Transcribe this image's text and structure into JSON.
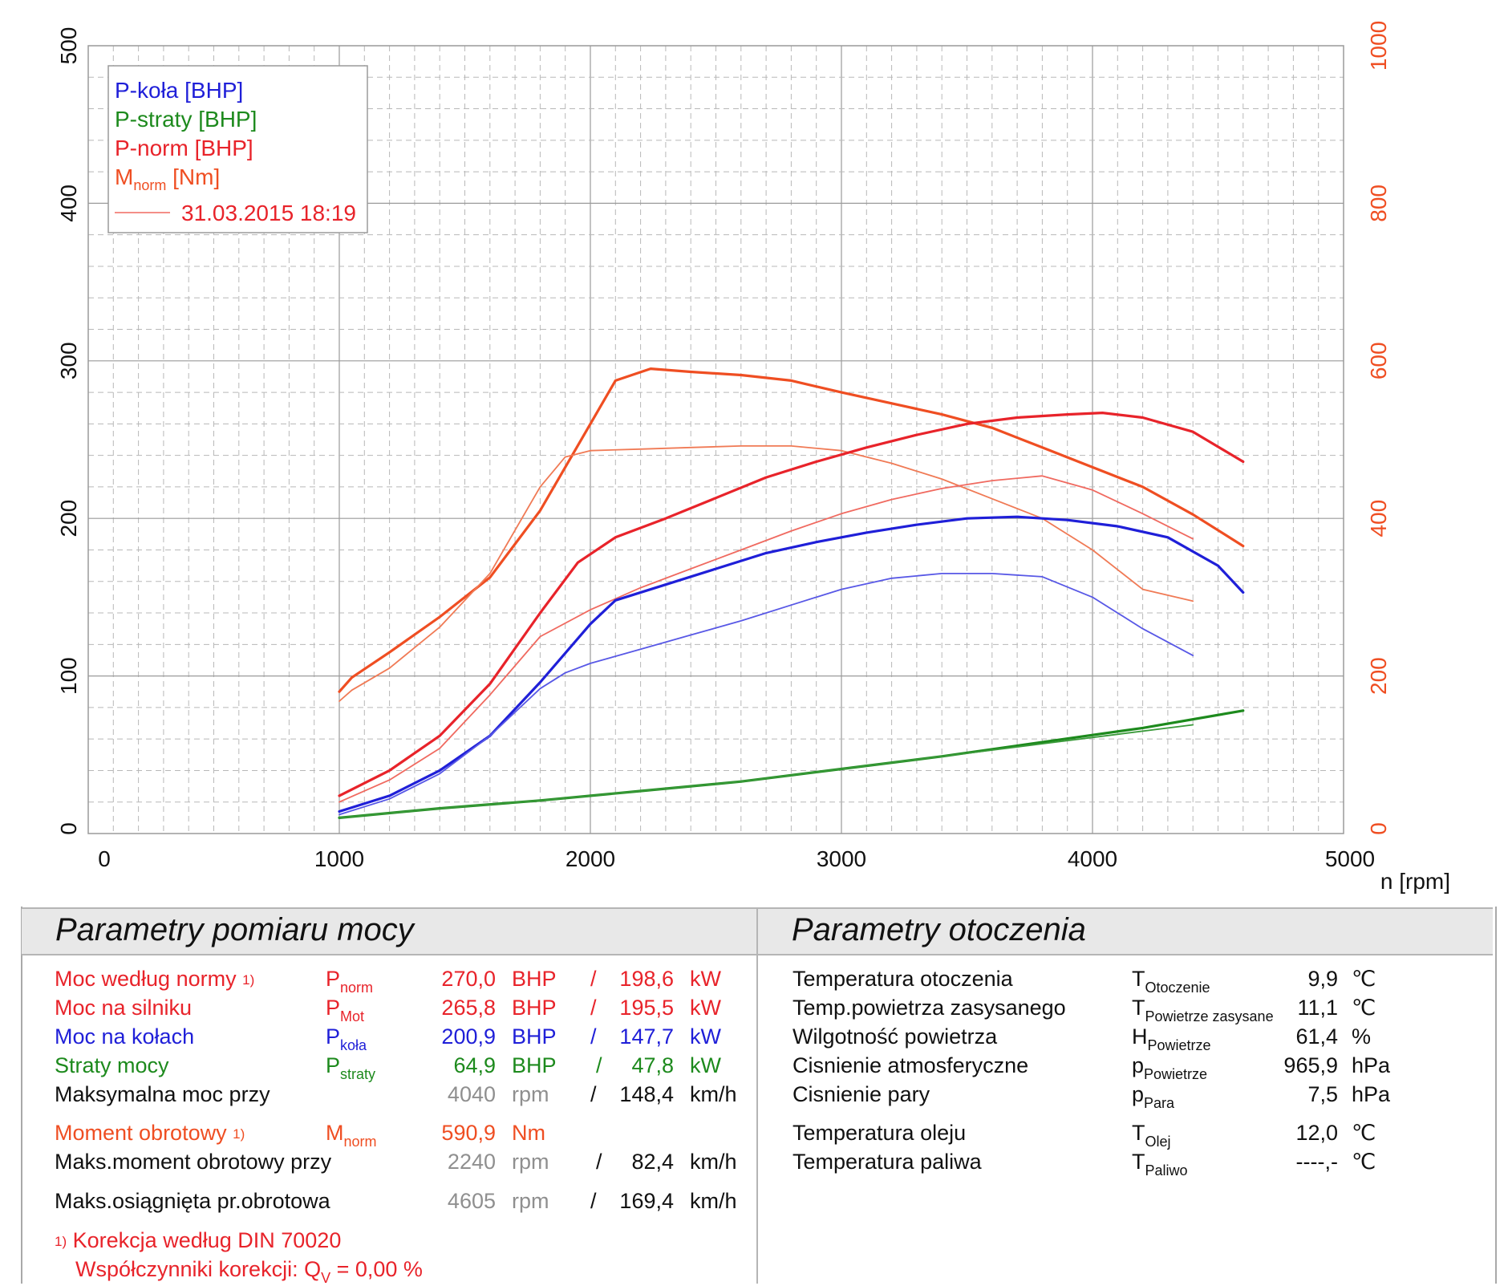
{
  "chart_data": {
    "type": "line",
    "xlabel": "n [rpm]",
    "x_ticks": [
      "0",
      "1000",
      "2000",
      "3000",
      "4000",
      "5000"
    ],
    "y_left_ticks": [
      "0",
      "100",
      "200",
      "300",
      "400",
      "500"
    ],
    "y_right_ticks": [
      "0",
      "200",
      "400",
      "600",
      "800",
      "1000"
    ],
    "xlim": [
      0,
      5000
    ],
    "ylim_left": [
      0,
      500
    ],
    "ylim_right": [
      0,
      1000
    ],
    "grid": true,
    "legend_position": "top-left",
    "legend": {
      "entries": [
        {
          "label": "P-koła [BHP]",
          "color": "#1f1fd8"
        },
        {
          "label": "P-straty [BHP]",
          "color": "#1d8a1d"
        },
        {
          "label": "P-norm [BHP]",
          "color": "#e8232a"
        }
      ],
      "mnorm_main": "M",
      "mnorm_sub": "norm",
      "mnorm_unit": " [Nm]",
      "date_label": "31.03.2015 18:19"
    },
    "series": [
      {
        "id": "torque-main",
        "axis": "right",
        "color": "#ef4e22",
        "width": 3.2,
        "x": [
          1000,
          1050,
          1200,
          1400,
          1600,
          1800,
          2000,
          2100,
          2240,
          2400,
          2600,
          2800,
          3000,
          3200,
          3400,
          3600,
          3800,
          4000,
          4200,
          4400,
          4600
        ],
        "y": [
          180,
          198,
          230,
          275,
          325,
          410,
          520,
          575,
          590,
          586,
          582,
          575,
          560,
          546,
          532,
          515,
          490,
          465,
          440,
          405,
          365
        ]
      },
      {
        "id": "torque-ref",
        "axis": "right",
        "color": "#f07a55",
        "width": 1.8,
        "x": [
          1000,
          1050,
          1200,
          1400,
          1600,
          1800,
          1900,
          2000,
          2200,
          2400,
          2600,
          2800,
          3000,
          3200,
          3400,
          3600,
          3800,
          4000,
          4200,
          4400
        ],
        "y": [
          168,
          182,
          210,
          262,
          330,
          440,
          478,
          486,
          488,
          490,
          492,
          492,
          486,
          470,
          450,
          425,
          400,
          360,
          310,
          295
        ]
      },
      {
        "id": "pnorm-main",
        "axis": "left",
        "color": "#e8232a",
        "width": 3.2,
        "x": [
          1000,
          1200,
          1400,
          1600,
          1800,
          1950,
          2100,
          2300,
          2500,
          2700,
          2900,
          3100,
          3300,
          3500,
          3700,
          3900,
          4040,
          4200,
          4400,
          4600
        ],
        "y": [
          24,
          40,
          62,
          95,
          140,
          172,
          188,
          200,
          213,
          226,
          236,
          245,
          253,
          260,
          264,
          266,
          267,
          264,
          255,
          236
        ]
      },
      {
        "id": "pnorm-ref",
        "axis": "left",
        "color": "#f06a60",
        "width": 1.8,
        "x": [
          1000,
          1200,
          1400,
          1600,
          1800,
          2000,
          2200,
          2400,
          2600,
          2800,
          3000,
          3200,
          3400,
          3600,
          3800,
          4000,
          4200,
          4400
        ],
        "y": [
          20,
          34,
          54,
          88,
          125,
          142,
          156,
          168,
          180,
          192,
          203,
          212,
          219,
          224,
          227,
          218,
          203,
          187
        ]
      },
      {
        "id": "pkola-main",
        "axis": "left",
        "color": "#1f1fd8",
        "width": 3.2,
        "x": [
          1000,
          1200,
          1400,
          1600,
          1800,
          2000,
          2100,
          2300,
          2500,
          2700,
          2900,
          3100,
          3300,
          3500,
          3700,
          3900,
          4100,
          4300,
          4500,
          4600
        ],
        "y": [
          14,
          24,
          40,
          62,
          96,
          133,
          148,
          158,
          168,
          178,
          185,
          191,
          196,
          200,
          201,
          199,
          195,
          188,
          170,
          153
        ]
      },
      {
        "id": "pkola-ref",
        "axis": "left",
        "color": "#5858e6",
        "width": 1.8,
        "x": [
          1000,
          1200,
          1400,
          1600,
          1800,
          1900,
          2000,
          2200,
          2400,
          2600,
          2800,
          3000,
          3200,
          3400,
          3600,
          3800,
          4000,
          4200,
          4400
        ],
        "y": [
          12,
          22,
          38,
          62,
          92,
          102,
          108,
          117,
          126,
          135,
          145,
          155,
          162,
          165,
          165,
          163,
          150,
          130,
          113
        ]
      },
      {
        "id": "straty-main",
        "axis": "left",
        "color": "#1d8a1d",
        "width": 3.2,
        "x": [
          1000,
          1400,
          1800,
          2200,
          2600,
          3000,
          3400,
          3800,
          4200,
          4600
        ],
        "y": [
          10,
          16,
          21,
          27,
          33,
          41,
          49,
          58,
          67,
          78
        ]
      },
      {
        "id": "straty-ref",
        "axis": "left",
        "color": "#3a9a3a",
        "width": 1.8,
        "x": [
          1000,
          1400,
          1800,
          2200,
          2600,
          3000,
          3400,
          3800,
          4100,
          4400
        ],
        "y": [
          10,
          16,
          21,
          27,
          33,
          41,
          49,
          57,
          63,
          69
        ]
      }
    ]
  },
  "params_left": {
    "title": "Parametry pomiaru mocy",
    "footnote_mark": "1)",
    "footnote_text": "Korekcja według DIN 70020",
    "korekcja_label": "Współczynniki korekcji: Q",
    "korekcja_sub": "V",
    "korekcja_value": " =   0,00 %",
    "rows": [
      {
        "label": "Moc według normy",
        "sym": "P",
        "sub": "norm",
        "v1": "270,0",
        "u1": "BHP",
        "slash": "/",
        "v2": "198,6",
        "u2": "kW"
      },
      {
        "label": "Moc na silniku",
        "sym": "P",
        "sub": "Mot",
        "v1": "265,8",
        "u1": "BHP",
        "slash": "/",
        "v2": "195,5",
        "u2": "kW"
      },
      {
        "label": "Moc na kołach",
        "sym": "P",
        "sub": "koła",
        "v1": "200,9",
        "u1": "BHP",
        "slash": "/",
        "v2": "147,7",
        "u2": "kW"
      },
      {
        "label": "Straty mocy",
        "sym": "P",
        "sub": "straty",
        "v1": "64,9",
        "u1": "BHP",
        "slash": "/",
        "v2": "47,8",
        "u2": "kW"
      },
      {
        "label": "Maksymalna moc przy",
        "v1": "4040",
        "u1": "rpm",
        "slash": "/",
        "v2": "148,4",
        "u2": "km/h"
      },
      {
        "label": "Moment obrotowy",
        "sym": "M",
        "sub": "norm",
        "v1": "590,9",
        "u1": "Nm"
      },
      {
        "label": "Maks.moment obrotowy przy",
        "v1": "2240",
        "u1": "rpm",
        "slash": "/",
        "v2": "82,4",
        "u2": "km/h"
      },
      {
        "label": "Maks.osiągnięta pr.obrotowa",
        "v1": "4605",
        "u1": "rpm",
        "slash": "/",
        "v2": "169,4",
        "u2": "km/h"
      }
    ]
  },
  "params_right": {
    "title": "Parametry otoczenia",
    "rows": [
      {
        "label": "Temperatura otoczenia",
        "sym": "T",
        "sub": "Otoczenie",
        "value": "9,9",
        "unit": "℃"
      },
      {
        "label": "Temp.powietrza zasysanego",
        "sym": "T",
        "sub": "Powietrze zasysane",
        "value": "11,1",
        "unit": "℃"
      },
      {
        "label": "Wilgotność powietrza",
        "sym": "H",
        "sub": "Powietrze",
        "value": "61,4",
        "unit": "%"
      },
      {
        "label": "Cisnienie atmosferyczne",
        "sym": "p",
        "sub": "Powietrze",
        "value": "965,9",
        "unit": "hPa"
      },
      {
        "label": "Cisnienie pary",
        "sym": "p",
        "sub": "Para",
        "value": "7,5",
        "unit": "hPa"
      },
      {
        "label": "Temperatura oleju",
        "sym": "T",
        "sub": "Olej",
        "value": "12,0",
        "unit": "℃"
      },
      {
        "label": "Temperatura paliwa",
        "sym": "T",
        "sub": "Paliwo",
        "value": "----,-",
        "unit": "℃"
      }
    ]
  }
}
